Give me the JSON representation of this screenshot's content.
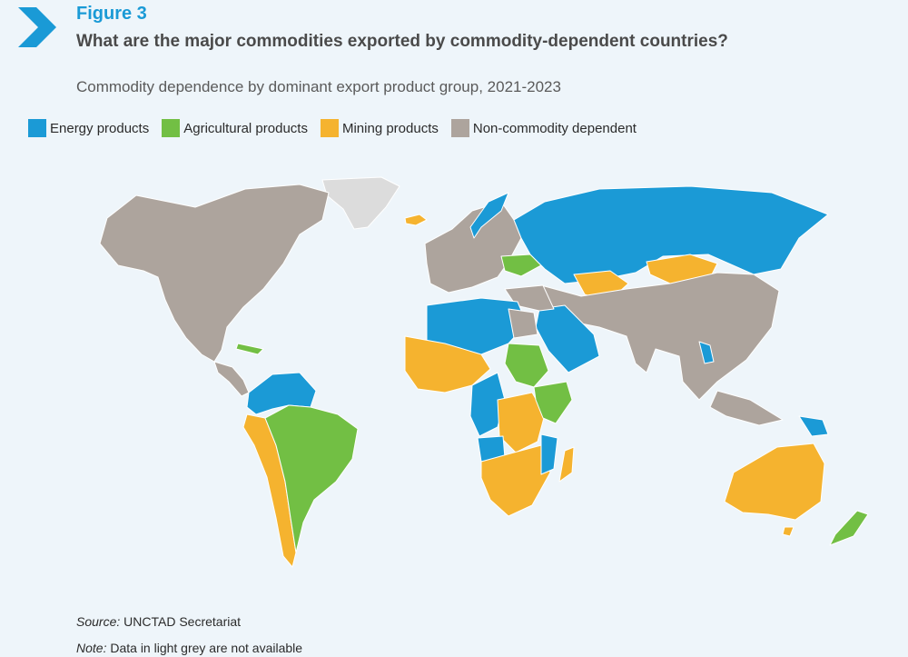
{
  "figure_label": "Figure 3",
  "title": "What are the major commodities exported by commodity-dependent countries?",
  "subtitle": "Commodity dependence by dominant export product group, 2021-2023",
  "legend": [
    {
      "label": "Energy products",
      "color": "#1b9ad6"
    },
    {
      "label": "Agricultural products",
      "color": "#72bf44"
    },
    {
      "label": "Mining products",
      "color": "#f5b32f"
    },
    {
      "label": "Non-commodity dependent",
      "color": "#ada49d"
    }
  ],
  "no_data_color": "#dcdcdc",
  "source_label": "Source:",
  "source_text": "UNCTAD Secretariat",
  "note_label": "Note:",
  "note_text": "Data in light grey are not available"
}
